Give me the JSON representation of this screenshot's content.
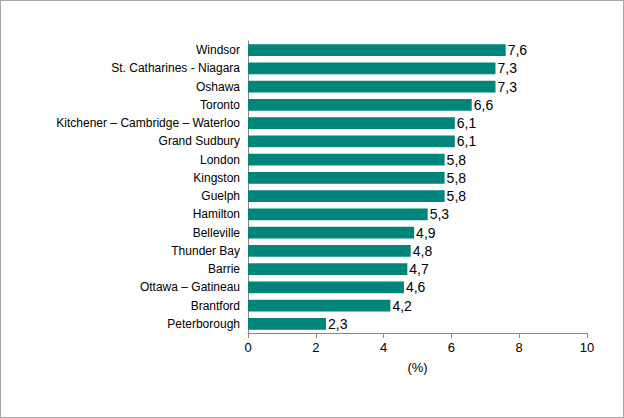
{
  "chart_data": {
    "type": "bar",
    "orientation": "horizontal",
    "categories": [
      "Windsor",
      "St. Catharines - Niagara",
      "Oshawa",
      "Toronto",
      "Kitchener – Cambridge – Waterloo",
      "Grand Sudbury",
      "London",
      "Kingston",
      "Guelph",
      "Hamilton",
      "Belleville",
      "Thunder Bay",
      "Barrie",
      "Ottawa – Gatineau",
      "Brantford",
      "Peterborough"
    ],
    "values": [
      7.6,
      7.3,
      7.3,
      6.6,
      6.1,
      6.1,
      5.8,
      5.8,
      5.8,
      5.3,
      4.9,
      4.8,
      4.7,
      4.6,
      4.2,
      2.3
    ],
    "value_labels": [
      "7,6",
      "7,3",
      "7,3",
      "6,6",
      "6,1",
      "6,1",
      "5,8",
      "5,8",
      "5,8",
      "5,3",
      "4,9",
      "4,8",
      "4,7",
      "4,6",
      "4,2",
      "2,3"
    ],
    "color": "#00857a",
    "xlabel": "(%)",
    "xlim": [
      0,
      10
    ],
    "xticks": [
      0,
      2,
      4,
      6,
      8,
      10
    ],
    "grid": false,
    "data_labels": true
  }
}
